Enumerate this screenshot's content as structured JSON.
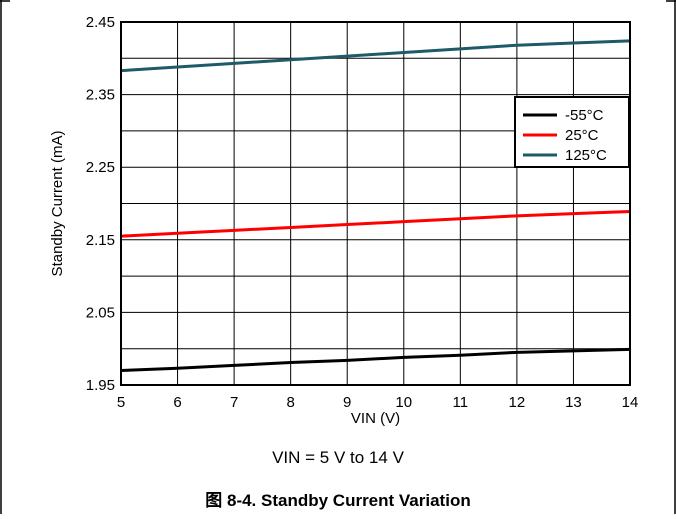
{
  "chart_data": {
    "type": "line",
    "xlabel": "VIN (V)",
    "ylabel": "Standby Current (mA)",
    "xlim": [
      5,
      14
    ],
    "ylim": [
      1.95,
      2.45
    ],
    "xticks": [
      "5",
      "6",
      "7",
      "8",
      "9",
      "10",
      "11",
      "12",
      "13",
      "14"
    ],
    "yticks": [
      "1.95",
      "2.05",
      "2.15",
      "2.25",
      "2.35",
      "2.45"
    ],
    "grid": true,
    "legend_position": "right",
    "x": [
      5,
      6,
      7,
      8,
      9,
      10,
      11,
      12,
      13,
      14
    ],
    "series": [
      {
        "name": "-55°C",
        "color": "#000000",
        "values": [
          1.97,
          1.973,
          1.977,
          1.981,
          1.984,
          1.988,
          1.991,
          1.995,
          1.997,
          1.999
        ]
      },
      {
        "name": "25°C",
        "color": "#ff0000",
        "values": [
          2.155,
          2.159,
          2.163,
          2.167,
          2.171,
          2.175,
          2.179,
          2.183,
          2.186,
          2.189
        ]
      },
      {
        "name": "125°C",
        "color": "#1e5a68",
        "values": [
          2.383,
          2.388,
          2.393,
          2.398,
          2.403,
          2.408,
          2.413,
          2.418,
          2.421,
          2.424
        ]
      }
    ]
  },
  "note": "VIN = 5 V to 14 V",
  "figure_title": "图 8-4. Standby Current Variation"
}
